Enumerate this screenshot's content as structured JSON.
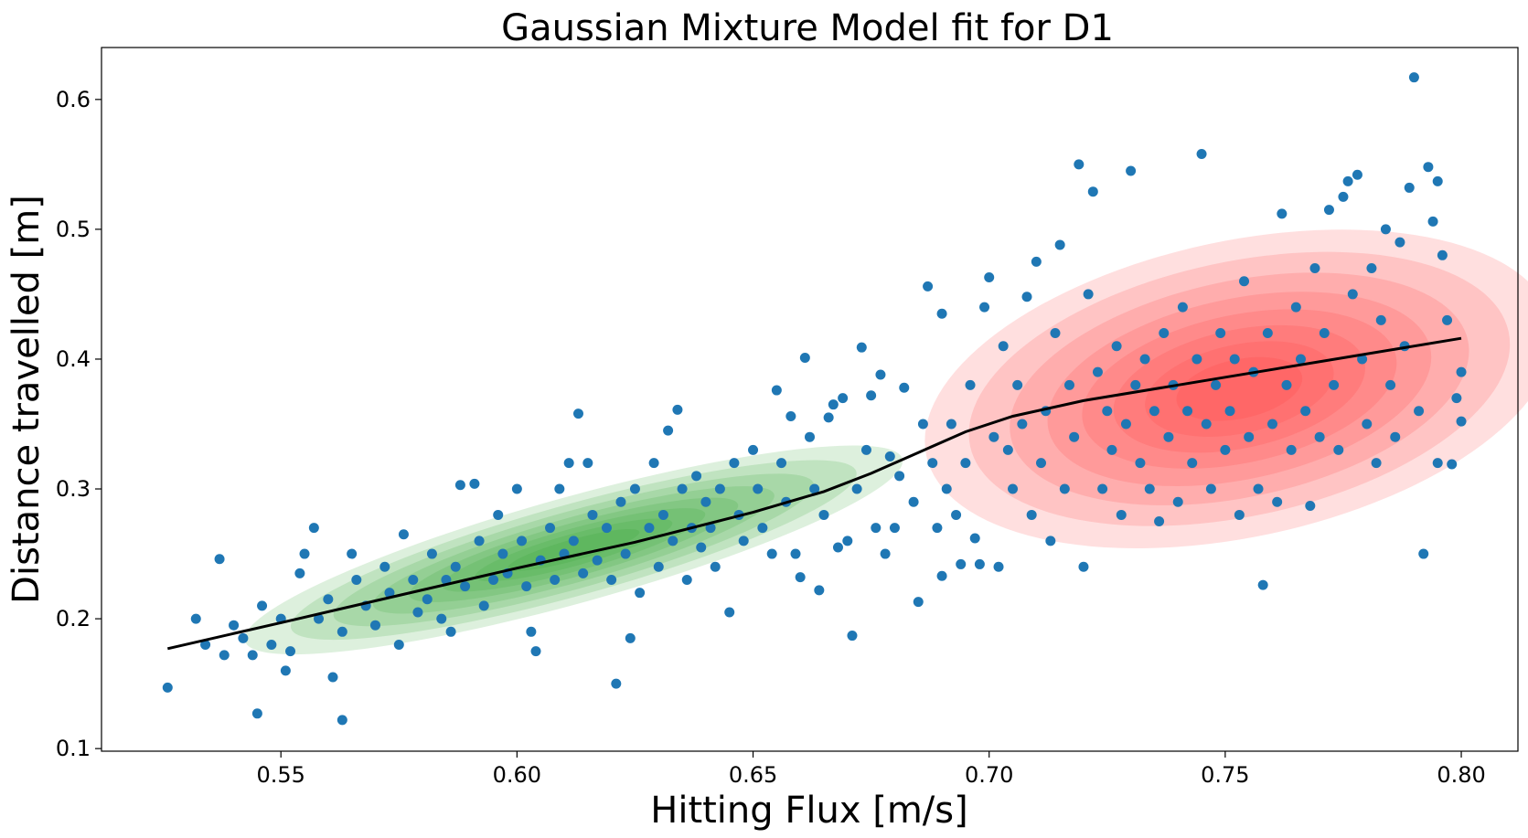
{
  "chart_data": {
    "type": "scatter",
    "title": "Gaussian Mixture Model fit for D1",
    "xlabel": "Hitting Flux [m/s]",
    "ylabel": "Distance travelled [m]",
    "xlim": [
      0.512,
      0.812
    ],
    "ylim": [
      0.098,
      0.64
    ],
    "xticks": [
      0.55,
      0.6,
      0.65,
      0.7,
      0.75,
      0.8
    ],
    "xtick_labels": [
      "0.55",
      "0.60",
      "0.65",
      "0.70",
      "0.75",
      "0.80"
    ],
    "yticks": [
      0.1,
      0.2,
      0.3,
      0.4,
      0.5,
      0.6
    ],
    "ytick_labels": [
      "0.1",
      "0.2",
      "0.3",
      "0.4",
      "0.5",
      "0.6"
    ],
    "grid": false,
    "legend": "none",
    "scatter_color": "#1f77b4",
    "scatter_points": [
      [
        0.526,
        0.147
      ],
      [
        0.532,
        0.2
      ],
      [
        0.534,
        0.18
      ],
      [
        0.537,
        0.246
      ],
      [
        0.538,
        0.172
      ],
      [
        0.54,
        0.195
      ],
      [
        0.542,
        0.185
      ],
      [
        0.544,
        0.172
      ],
      [
        0.545,
        0.127
      ],
      [
        0.546,
        0.21
      ],
      [
        0.548,
        0.18
      ],
      [
        0.55,
        0.2
      ],
      [
        0.551,
        0.16
      ],
      [
        0.552,
        0.175
      ],
      [
        0.554,
        0.235
      ],
      [
        0.555,
        0.25
      ],
      [
        0.557,
        0.27
      ],
      [
        0.558,
        0.2
      ],
      [
        0.56,
        0.215
      ],
      [
        0.561,
        0.155
      ],
      [
        0.563,
        0.19
      ],
      [
        0.563,
        0.122
      ],
      [
        0.565,
        0.25
      ],
      [
        0.566,
        0.23
      ],
      [
        0.568,
        0.21
      ],
      [
        0.57,
        0.195
      ],
      [
        0.572,
        0.24
      ],
      [
        0.573,
        0.22
      ],
      [
        0.575,
        0.18
      ],
      [
        0.576,
        0.265
      ],
      [
        0.578,
        0.23
      ],
      [
        0.579,
        0.205
      ],
      [
        0.581,
        0.215
      ],
      [
        0.582,
        0.25
      ],
      [
        0.584,
        0.2
      ],
      [
        0.585,
        0.23
      ],
      [
        0.586,
        0.19
      ],
      [
        0.587,
        0.24
      ],
      [
        0.588,
        0.303
      ],
      [
        0.589,
        0.225
      ],
      [
        0.591,
        0.304
      ],
      [
        0.592,
        0.26
      ],
      [
        0.593,
        0.21
      ],
      [
        0.595,
        0.23
      ],
      [
        0.596,
        0.28
      ],
      [
        0.597,
        0.25
      ],
      [
        0.598,
        0.235
      ],
      [
        0.6,
        0.3
      ],
      [
        0.601,
        0.26
      ],
      [
        0.602,
        0.225
      ],
      [
        0.603,
        0.19
      ],
      [
        0.604,
        0.175
      ],
      [
        0.605,
        0.245
      ],
      [
        0.607,
        0.27
      ],
      [
        0.608,
        0.23
      ],
      [
        0.609,
        0.3
      ],
      [
        0.61,
        0.25
      ],
      [
        0.611,
        0.32
      ],
      [
        0.612,
        0.26
      ],
      [
        0.613,
        0.358
      ],
      [
        0.614,
        0.235
      ],
      [
        0.615,
        0.32
      ],
      [
        0.616,
        0.28
      ],
      [
        0.617,
        0.245
      ],
      [
        0.619,
        0.27
      ],
      [
        0.62,
        0.23
      ],
      [
        0.621,
        0.15
      ],
      [
        0.622,
        0.29
      ],
      [
        0.623,
        0.25
      ],
      [
        0.624,
        0.185
      ],
      [
        0.625,
        0.3
      ],
      [
        0.626,
        0.22
      ],
      [
        0.628,
        0.27
      ],
      [
        0.629,
        0.32
      ],
      [
        0.63,
        0.24
      ],
      [
        0.631,
        0.28
      ],
      [
        0.632,
        0.345
      ],
      [
        0.633,
        0.26
      ],
      [
        0.634,
        0.361
      ],
      [
        0.635,
        0.3
      ],
      [
        0.636,
        0.23
      ],
      [
        0.637,
        0.27
      ],
      [
        0.638,
        0.31
      ],
      [
        0.639,
        0.255
      ],
      [
        0.64,
        0.29
      ],
      [
        0.641,
        0.27
      ],
      [
        0.642,
        0.24
      ],
      [
        0.643,
        0.3
      ],
      [
        0.645,
        0.205
      ],
      [
        0.646,
        0.32
      ],
      [
        0.647,
        0.28
      ],
      [
        0.648,
        0.26
      ],
      [
        0.65,
        0.33
      ],
      [
        0.651,
        0.3
      ],
      [
        0.652,
        0.27
      ],
      [
        0.654,
        0.25
      ],
      [
        0.655,
        0.376
      ],
      [
        0.656,
        0.32
      ],
      [
        0.657,
        0.29
      ],
      [
        0.658,
        0.356
      ],
      [
        0.659,
        0.25
      ],
      [
        0.66,
        0.232
      ],
      [
        0.661,
        0.401
      ],
      [
        0.662,
        0.34
      ],
      [
        0.663,
        0.3
      ],
      [
        0.664,
        0.222
      ],
      [
        0.665,
        0.28
      ],
      [
        0.666,
        0.355
      ],
      [
        0.667,
        0.365
      ],
      [
        0.668,
        0.255
      ],
      [
        0.669,
        0.37
      ],
      [
        0.67,
        0.26
      ],
      [
        0.671,
        0.187
      ],
      [
        0.672,
        0.3
      ],
      [
        0.673,
        0.409
      ],
      [
        0.674,
        0.33
      ],
      [
        0.675,
        0.372
      ],
      [
        0.676,
        0.27
      ],
      [
        0.677,
        0.388
      ],
      [
        0.678,
        0.25
      ],
      [
        0.679,
        0.325
      ],
      [
        0.68,
        0.27
      ],
      [
        0.681,
        0.31
      ],
      [
        0.682,
        0.378
      ],
      [
        0.684,
        0.29
      ],
      [
        0.685,
        0.213
      ],
      [
        0.686,
        0.35
      ],
      [
        0.687,
        0.456
      ],
      [
        0.688,
        0.32
      ],
      [
        0.689,
        0.27
      ],
      [
        0.69,
        0.435
      ],
      [
        0.69,
        0.233
      ],
      [
        0.691,
        0.3
      ],
      [
        0.692,
        0.35
      ],
      [
        0.693,
        0.28
      ],
      [
        0.694,
        0.242
      ],
      [
        0.695,
        0.32
      ],
      [
        0.696,
        0.38
      ],
      [
        0.697,
        0.262
      ],
      [
        0.698,
        0.242
      ],
      [
        0.699,
        0.44
      ],
      [
        0.7,
        0.463
      ],
      [
        0.701,
        0.34
      ],
      [
        0.702,
        0.24
      ],
      [
        0.703,
        0.41
      ],
      [
        0.704,
        0.33
      ],
      [
        0.705,
        0.3
      ],
      [
        0.706,
        0.38
      ],
      [
        0.707,
        0.35
      ],
      [
        0.708,
        0.448
      ],
      [
        0.709,
        0.28
      ],
      [
        0.71,
        0.475
      ],
      [
        0.711,
        0.32
      ],
      [
        0.712,
        0.36
      ],
      [
        0.713,
        0.26
      ],
      [
        0.714,
        0.42
      ],
      [
        0.715,
        0.488
      ],
      [
        0.716,
        0.3
      ],
      [
        0.717,
        0.38
      ],
      [
        0.718,
        0.34
      ],
      [
        0.719,
        0.55
      ],
      [
        0.72,
        0.24
      ],
      [
        0.721,
        0.45
      ],
      [
        0.722,
        0.529
      ],
      [
        0.723,
        0.39
      ],
      [
        0.724,
        0.3
      ],
      [
        0.725,
        0.36
      ],
      [
        0.726,
        0.33
      ],
      [
        0.727,
        0.41
      ],
      [
        0.728,
        0.28
      ],
      [
        0.729,
        0.35
      ],
      [
        0.73,
        0.545
      ],
      [
        0.731,
        0.38
      ],
      [
        0.732,
        0.32
      ],
      [
        0.733,
        0.4
      ],
      [
        0.734,
        0.3
      ],
      [
        0.735,
        0.36
      ],
      [
        0.736,
        0.275
      ],
      [
        0.737,
        0.42
      ],
      [
        0.738,
        0.34
      ],
      [
        0.739,
        0.38
      ],
      [
        0.74,
        0.29
      ],
      [
        0.741,
        0.44
      ],
      [
        0.742,
        0.36
      ],
      [
        0.743,
        0.32
      ],
      [
        0.744,
        0.4
      ],
      [
        0.745,
        0.558
      ],
      [
        0.746,
        0.35
      ],
      [
        0.747,
        0.3
      ],
      [
        0.748,
        0.38
      ],
      [
        0.749,
        0.42
      ],
      [
        0.75,
        0.33
      ],
      [
        0.751,
        0.36
      ],
      [
        0.752,
        0.4
      ],
      [
        0.753,
        0.28
      ],
      [
        0.754,
        0.46
      ],
      [
        0.755,
        0.34
      ],
      [
        0.756,
        0.39
      ],
      [
        0.757,
        0.3
      ],
      [
        0.758,
        0.226
      ],
      [
        0.759,
        0.42
      ],
      [
        0.76,
        0.35
      ],
      [
        0.761,
        0.29
      ],
      [
        0.762,
        0.512
      ],
      [
        0.763,
        0.38
      ],
      [
        0.764,
        0.33
      ],
      [
        0.765,
        0.44
      ],
      [
        0.766,
        0.4
      ],
      [
        0.767,
        0.36
      ],
      [
        0.768,
        0.287
      ],
      [
        0.769,
        0.47
      ],
      [
        0.77,
        0.34
      ],
      [
        0.771,
        0.42
      ],
      [
        0.772,
        0.515
      ],
      [
        0.773,
        0.38
      ],
      [
        0.774,
        0.33
      ],
      [
        0.775,
        0.525
      ],
      [
        0.776,
        0.537
      ],
      [
        0.777,
        0.45
      ],
      [
        0.778,
        0.542
      ],
      [
        0.779,
        0.4
      ],
      [
        0.78,
        0.35
      ],
      [
        0.781,
        0.47
      ],
      [
        0.782,
        0.32
      ],
      [
        0.783,
        0.43
      ],
      [
        0.784,
        0.5
      ],
      [
        0.785,
        0.38
      ],
      [
        0.786,
        0.34
      ],
      [
        0.787,
        0.49
      ],
      [
        0.788,
        0.41
      ],
      [
        0.789,
        0.532
      ],
      [
        0.79,
        0.617
      ],
      [
        0.791,
        0.36
      ],
      [
        0.792,
        0.25
      ],
      [
        0.793,
        0.548
      ],
      [
        0.794,
        0.506
      ],
      [
        0.795,
        0.537
      ],
      [
        0.795,
        0.32
      ],
      [
        0.796,
        0.48
      ],
      [
        0.797,
        0.43
      ],
      [
        0.798,
        0.319
      ],
      [
        0.799,
        0.37
      ],
      [
        0.8,
        0.352
      ],
      [
        0.8,
        0.39
      ]
    ],
    "gmm_components": [
      {
        "mean": [
          0.612,
          0.253
        ],
        "color": "#2ca02c"
      },
      {
        "mean": [
          0.753,
          0.377
        ],
        "color": "#ff3b3b"
      }
    ],
    "regression_line": {
      "color": "#000000",
      "x": [
        0.526,
        0.55,
        0.575,
        0.6,
        0.625,
        0.65,
        0.665,
        0.675,
        0.685,
        0.695,
        0.705,
        0.72,
        0.75,
        0.775,
        0.8
      ],
      "y": [
        0.177,
        0.197,
        0.218,
        0.239,
        0.259,
        0.282,
        0.298,
        0.312,
        0.328,
        0.344,
        0.356,
        0.368,
        0.386,
        0.401,
        0.416
      ]
    }
  }
}
